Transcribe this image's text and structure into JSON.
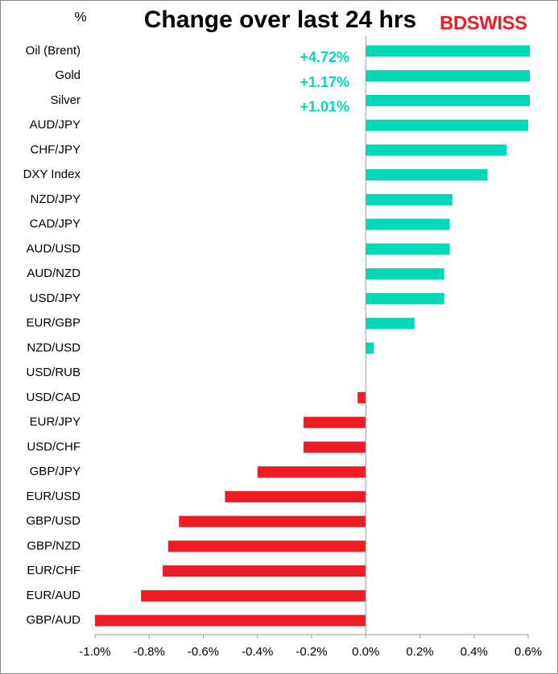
{
  "chart_data": {
    "type": "barh",
    "title": "Change over last 24 hrs",
    "unit_label": "%",
    "logo": "BDSWISS",
    "categories": [
      "Oil (Brent)",
      "Gold",
      "Silver",
      "AUD/JPY",
      "CHF/JPY",
      "DXY Index",
      "NZD/JPY",
      "CAD/JPY",
      "AUD/USD",
      "AUD/NZD",
      "USD/JPY",
      "EUR/GBP",
      "NZD/USD",
      "USD/RUB",
      "USD/CAD",
      "EUR/JPY",
      "USD/CHF",
      "GBP/JPY",
      "EUR/USD",
      "GBP/USD",
      "GBP/NZD",
      "EUR/CHF",
      "EUR/AUD",
      "GBP/AUD"
    ],
    "values": [
      4.72,
      1.17,
      1.01,
      0.6,
      0.52,
      0.45,
      0.32,
      0.31,
      0.31,
      0.29,
      0.29,
      0.18,
      0.03,
      0,
      -0.03,
      -0.23,
      -0.23,
      -0.4,
      -0.52,
      -0.69,
      -0.73,
      -0.75,
      -0.83,
      -1.0
    ],
    "value_labels": [
      "+4.72%",
      "+1.17%",
      "+1.01%",
      null,
      null,
      null,
      null,
      null,
      null,
      null,
      null,
      null,
      null,
      null,
      null,
      null,
      null,
      null,
      null,
      null,
      null,
      null,
      null,
      null
    ],
    "color": "#00d9b9",
    "negative_color": "#ee1c25",
    "xlim": [
      -1.0,
      0.6
    ],
    "xticks": [
      {
        "value": -1.0,
        "label": "-1.0%"
      },
      {
        "value": -0.8,
        "label": "-0.8%"
      },
      {
        "value": -0.6,
        "label": "-0.6%"
      },
      {
        "value": -0.4,
        "label": "-0.4%"
      },
      {
        "value": -0.2,
        "label": "-0.2%"
      },
      {
        "value": 0.0,
        "label": "0.0%"
      },
      {
        "value": 0.2,
        "label": "0.2%"
      },
      {
        "value": 0.4,
        "label": "0.4%"
      },
      {
        "value": 0.6,
        "label": "0.6%"
      }
    ]
  }
}
